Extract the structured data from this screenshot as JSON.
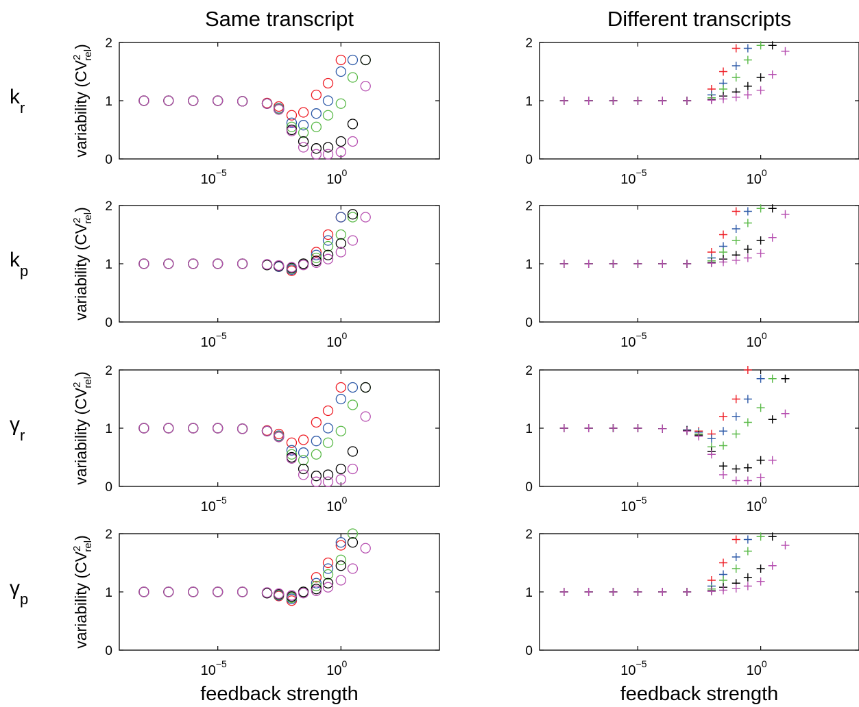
{
  "column_titles": [
    "Same transcript",
    "Different transcripts"
  ],
  "row_labels": [
    {
      "sym": "k",
      "sub": "r"
    },
    {
      "sym": "γ",
      "sub": "r"
    },
    {
      "sym": "k",
      "sub": "p"
    },
    {
      "sym": "γ",
      "sub": "p"
    }
  ],
  "ylabel": {
    "text": "variability (CV",
    "sup": "2",
    "sub": "rel",
    "close": ")"
  },
  "xlabel": "feedback strength",
  "x_tick_labels": [
    {
      "base": "10",
      "exp": "−5"
    },
    {
      "base": "10",
      "exp": "0"
    }
  ],
  "y_tick_labels": [
    "0",
    "1",
    "2"
  ],
  "colors": [
    "#ee1c24",
    "#2e5aa8",
    "#59b947",
    "#000000",
    "#b64fb0"
  ],
  "chart_data": [
    {
      "id": "kr-same",
      "type": "scatter",
      "marker": "circle",
      "xscale": "log",
      "xlim": [
        1e-09,
        10000
      ],
      "ylim": [
        0,
        2
      ],
      "x_ticks": [
        1e-05,
        1
      ],
      "y_ticks": [
        0,
        1,
        2
      ],
      "ylabel": "variability (CV²rel)",
      "xlabel": "",
      "x": [
        1e-08,
        1e-07,
        1e-06,
        1e-05,
        0.0001,
        0.001,
        0.003,
        0.01,
        0.03,
        0.1,
        0.3,
        1,
        3,
        10
      ],
      "series": [
        {
          "values": [
            1,
            1,
            1,
            1,
            0.99,
            0.96,
            0.9,
            0.75,
            0.8,
            1.1,
            1.3,
            1.7,
            null,
            null
          ]
        },
        {
          "values": [
            1,
            1,
            1,
            1,
            0.99,
            0.95,
            0.87,
            0.62,
            0.58,
            0.78,
            1.0,
            1.5,
            1.7,
            null
          ]
        },
        {
          "values": [
            1,
            1,
            1,
            1,
            0.99,
            0.95,
            0.86,
            0.55,
            0.45,
            0.55,
            0.75,
            0.95,
            1.4,
            1.7
          ]
        },
        {
          "values": [
            1,
            1,
            1,
            1,
            0.99,
            0.95,
            0.85,
            0.5,
            0.3,
            0.18,
            0.2,
            0.3,
            0.6,
            1.7
          ]
        },
        {
          "values": [
            1,
            1,
            1,
            1,
            0.99,
            0.95,
            0.85,
            0.48,
            0.2,
            0.08,
            0.08,
            0.12,
            0.3,
            1.25
          ]
        }
      ]
    },
    {
      "id": "kr-diff",
      "type": "scatter",
      "marker": "plus",
      "xscale": "log",
      "xlim": [
        1e-09,
        10000
      ],
      "ylim": [
        0,
        2
      ],
      "x_ticks": [
        1e-05,
        1
      ],
      "y_ticks": [
        0,
        1,
        2
      ],
      "ylabel": "",
      "xlabel": "",
      "x": [
        1e-08,
        1e-07,
        1e-06,
        1e-05,
        0.0001,
        0.001,
        0.01,
        0.03,
        0.1,
        0.3,
        1,
        3,
        10
      ],
      "series": [
        {
          "values": [
            1,
            1,
            1,
            1,
            1,
            1,
            1.2,
            1.5,
            1.9,
            null,
            null,
            null,
            null
          ]
        },
        {
          "values": [
            1,
            1,
            1,
            1,
            1,
            1,
            1.1,
            1.3,
            1.6,
            1.9,
            null,
            null,
            null
          ]
        },
        {
          "values": [
            1,
            1,
            1,
            1,
            1,
            1,
            1.05,
            1.2,
            1.4,
            1.7,
            1.95,
            null,
            null
          ]
        },
        {
          "values": [
            1,
            1,
            1,
            1,
            1,
            1,
            1.02,
            1.08,
            1.15,
            1.25,
            1.4,
            1.95,
            null
          ]
        },
        {
          "values": [
            1,
            1,
            1,
            1,
            1,
            1,
            1.01,
            1.03,
            1.06,
            1.1,
            1.18,
            1.45,
            1.85
          ]
        }
      ]
    },
    {
      "id": "kp-same",
      "type": "scatter",
      "marker": "circle",
      "xscale": "log",
      "xlim": [
        1e-09,
        10000
      ],
      "ylim": [
        0,
        2
      ],
      "x_ticks": [
        1e-05,
        1
      ],
      "y_ticks": [
        0,
        1,
        2
      ],
      "ylabel": "variability (CV²rel)",
      "xlabel": "",
      "x": [
        1e-08,
        1e-07,
        1e-06,
        1e-05,
        0.0001,
        0.001,
        0.003,
        0.01,
        0.03,
        0.1,
        0.3,
        1,
        3,
        10
      ],
      "series": [
        {
          "values": [
            1,
            1,
            1,
            1,
            1,
            0.98,
            0.95,
            0.88,
            1.0,
            1.2,
            1.5,
            1.8,
            null,
            null
          ]
        },
        {
          "values": [
            1,
            1,
            1,
            1,
            1,
            0.98,
            0.95,
            0.9,
            1.0,
            1.15,
            1.4,
            1.8,
            null,
            null
          ]
        },
        {
          "values": [
            1,
            1,
            1,
            1,
            1,
            0.98,
            0.96,
            0.92,
            1.0,
            1.1,
            1.3,
            1.5,
            1.8,
            null
          ]
        },
        {
          "values": [
            1,
            1,
            1,
            1,
            1,
            0.98,
            0.96,
            0.93,
            1.0,
            1.05,
            1.15,
            1.35,
            1.85,
            null
          ]
        },
        {
          "values": [
            1,
            1,
            1,
            1,
            1,
            0.99,
            0.97,
            0.94,
            0.98,
            1.02,
            1.08,
            1.2,
            1.4,
            1.8
          ]
        }
      ]
    },
    {
      "id": "kp-diff",
      "type": "scatter",
      "marker": "plus",
      "xscale": "log",
      "xlim": [
        1e-09,
        10000
      ],
      "ylim": [
        0,
        2
      ],
      "x_ticks": [
        1e-05,
        1
      ],
      "y_ticks": [
        0,
        1,
        2
      ],
      "ylabel": "",
      "xlabel": "",
      "x": [
        1e-08,
        1e-07,
        1e-06,
        1e-05,
        0.0001,
        0.001,
        0.01,
        0.03,
        0.1,
        0.3,
        1,
        3,
        10
      ],
      "series": [
        {
          "values": [
            1,
            1,
            1,
            1,
            1,
            1,
            1.2,
            1.5,
            1.9,
            null,
            null,
            null,
            null
          ]
        },
        {
          "values": [
            1,
            1,
            1,
            1,
            1,
            1,
            1.1,
            1.3,
            1.6,
            1.9,
            null,
            null,
            null
          ]
        },
        {
          "values": [
            1,
            1,
            1,
            1,
            1,
            1,
            1.05,
            1.2,
            1.4,
            1.7,
            1.95,
            null,
            null
          ]
        },
        {
          "values": [
            1,
            1,
            1,
            1,
            1,
            1,
            1.02,
            1.08,
            1.15,
            1.25,
            1.4,
            1.95,
            null
          ]
        },
        {
          "values": [
            1,
            1,
            1,
            1,
            1,
            1,
            1.01,
            1.03,
            1.06,
            1.1,
            1.18,
            1.45,
            1.85
          ]
        }
      ]
    },
    {
      "id": "gr-same",
      "type": "scatter",
      "marker": "circle",
      "xscale": "log",
      "xlim": [
        1e-09,
        10000
      ],
      "ylim": [
        0,
        2
      ],
      "x_ticks": [
        1e-05,
        1
      ],
      "y_ticks": [
        0,
        1,
        2
      ],
      "ylabel": "variability (CV²rel)",
      "xlabel": "",
      "x": [
        1e-08,
        1e-07,
        1e-06,
        1e-05,
        0.0001,
        0.001,
        0.003,
        0.01,
        0.03,
        0.1,
        0.3,
        1,
        3,
        10
      ],
      "series": [
        {
          "values": [
            1,
            1,
            1,
            1,
            0.99,
            0.96,
            0.9,
            0.75,
            0.8,
            1.1,
            1.3,
            1.7,
            null,
            null
          ]
        },
        {
          "values": [
            1,
            1,
            1,
            1,
            0.99,
            0.95,
            0.87,
            0.62,
            0.58,
            0.78,
            1.0,
            1.5,
            1.7,
            null
          ]
        },
        {
          "values": [
            1,
            1,
            1,
            1,
            0.99,
            0.95,
            0.86,
            0.55,
            0.45,
            0.55,
            0.75,
            0.95,
            1.4,
            1.7
          ]
        },
        {
          "values": [
            1,
            1,
            1,
            1,
            0.99,
            0.95,
            0.85,
            0.5,
            0.3,
            0.18,
            0.2,
            0.3,
            0.6,
            1.7
          ]
        },
        {
          "values": [
            1,
            1,
            1,
            1,
            0.99,
            0.95,
            0.85,
            0.48,
            0.2,
            0.08,
            0.08,
            0.12,
            0.3,
            1.2
          ]
        }
      ]
    },
    {
      "id": "gr-diff",
      "type": "scatter",
      "marker": "plus",
      "xscale": "log",
      "xlim": [
        1e-09,
        10000
      ],
      "ylim": [
        0,
        2
      ],
      "x_ticks": [
        1e-05,
        1
      ],
      "y_ticks": [
        0,
        1,
        2
      ],
      "ylabel": "",
      "xlabel": "",
      "x": [
        1e-08,
        1e-07,
        1e-06,
        1e-05,
        0.0001,
        0.001,
        0.003,
        0.01,
        0.03,
        0.1,
        0.3,
        1,
        3,
        10
      ],
      "series": [
        {
          "values": [
            1,
            1,
            1,
            1,
            0.99,
            0.97,
            0.95,
            0.9,
            1.2,
            1.5,
            2.0,
            null,
            null,
            null
          ]
        },
        {
          "values": [
            1,
            1,
            1,
            1,
            0.99,
            0.97,
            0.93,
            0.82,
            0.95,
            1.2,
            1.5,
            1.85,
            null,
            null
          ]
        },
        {
          "values": [
            1,
            1,
            1,
            1,
            0.99,
            0.96,
            0.9,
            0.68,
            0.7,
            0.9,
            1.1,
            1.35,
            1.85,
            null
          ]
        },
        {
          "values": [
            1,
            1,
            1,
            1,
            0.99,
            0.96,
            0.88,
            0.6,
            0.35,
            0.3,
            0.32,
            0.45,
            1.15,
            1.85
          ]
        },
        {
          "values": [
            1,
            1,
            1,
            1,
            0.99,
            0.95,
            0.86,
            0.55,
            0.2,
            0.1,
            0.1,
            0.15,
            0.45,
            1.25
          ]
        }
      ]
    },
    {
      "id": "gp-same",
      "type": "scatter",
      "marker": "circle",
      "xscale": "log",
      "xlim": [
        1e-09,
        10000
      ],
      "ylim": [
        0,
        2
      ],
      "x_ticks": [
        1e-05,
        1
      ],
      "y_ticks": [
        0,
        1,
        2
      ],
      "ylabel": "variability (CV²rel)",
      "xlabel": "feedback strength",
      "x": [
        1e-08,
        1e-07,
        1e-06,
        1e-05,
        0.0001,
        0.001,
        0.003,
        0.01,
        0.03,
        0.1,
        0.3,
        1,
        3,
        10
      ],
      "series": [
        {
          "values": [
            1,
            1,
            1,
            1,
            1,
            0.98,
            0.93,
            0.85,
            1.0,
            1.25,
            1.5,
            1.8,
            null,
            null
          ]
        },
        {
          "values": [
            1,
            1,
            1,
            1,
            1,
            0.98,
            0.94,
            0.88,
            1.0,
            1.15,
            1.4,
            1.85,
            null,
            null
          ]
        },
        {
          "values": [
            1,
            1,
            1,
            1,
            1,
            0.98,
            0.95,
            0.9,
            1.0,
            1.1,
            1.3,
            1.55,
            2.0,
            null
          ]
        },
        {
          "values": [
            1,
            1,
            1,
            1,
            1,
            0.98,
            0.96,
            0.92,
            1.0,
            1.05,
            1.15,
            1.45,
            1.85,
            null
          ]
        },
        {
          "values": [
            1,
            1,
            1,
            1,
            1,
            0.99,
            0.97,
            0.94,
            0.98,
            1.02,
            1.08,
            1.2,
            1.4,
            1.75
          ]
        }
      ]
    },
    {
      "id": "gp-diff",
      "type": "scatter",
      "marker": "plus",
      "xscale": "log",
      "xlim": [
        1e-09,
        10000
      ],
      "ylim": [
        0,
        2
      ],
      "x_ticks": [
        1e-05,
        1
      ],
      "y_ticks": [
        0,
        1,
        2
      ],
      "ylabel": "",
      "xlabel": "feedback strength",
      "x": [
        1e-08,
        1e-07,
        1e-06,
        1e-05,
        0.0001,
        0.001,
        0.01,
        0.03,
        0.1,
        0.3,
        1,
        3,
        10
      ],
      "series": [
        {
          "values": [
            1,
            1,
            1,
            1,
            1,
            1,
            1.2,
            1.5,
            1.9,
            null,
            null,
            null,
            null
          ]
        },
        {
          "values": [
            1,
            1,
            1,
            1,
            1,
            1,
            1.1,
            1.3,
            1.6,
            1.9,
            null,
            null,
            null
          ]
        },
        {
          "values": [
            1,
            1,
            1,
            1,
            1,
            1,
            1.05,
            1.2,
            1.4,
            1.7,
            1.95,
            null,
            null
          ]
        },
        {
          "values": [
            1,
            1,
            1,
            1,
            1,
            1,
            1.02,
            1.08,
            1.15,
            1.25,
            1.4,
            1.95,
            null
          ]
        },
        {
          "values": [
            1,
            1,
            1,
            1,
            1,
            1,
            1.01,
            1.03,
            1.06,
            1.1,
            1.18,
            1.45,
            1.8
          ]
        }
      ]
    }
  ]
}
